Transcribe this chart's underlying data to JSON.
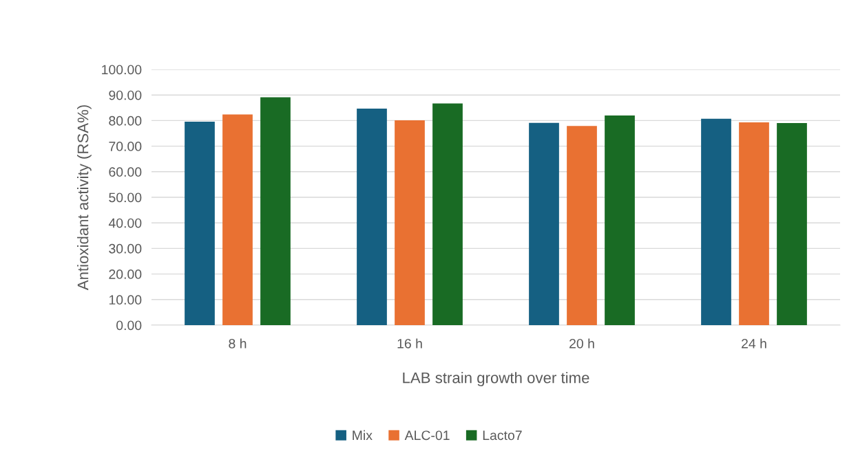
{
  "chart_data": {
    "type": "bar",
    "xlabel": "LAB strain growth over time",
    "ylabel": "Antioxidant activity (RSA%)",
    "categories": [
      "8 h",
      "16 h",
      "20 h",
      "24 h"
    ],
    "series": [
      {
        "name": "Mix",
        "color": "#156082",
        "values": [
          79.6,
          84.7,
          79.1,
          80.7
        ]
      },
      {
        "name": "ALC-01",
        "color": "#e97132",
        "values": [
          82.4,
          80.1,
          77.9,
          79.3
        ]
      },
      {
        "name": "Lacto7",
        "color": "#196b24",
        "values": [
          89.1,
          86.7,
          82.0,
          79.0
        ]
      }
    ],
    "ylim": [
      0,
      100
    ],
    "yticks": [
      {
        "value": 0,
        "label": "0.00"
      },
      {
        "value": 10,
        "label": "10.00"
      },
      {
        "value": 20,
        "label": "20.00"
      },
      {
        "value": 30,
        "label": "30.00"
      },
      {
        "value": 40,
        "label": "40.00"
      },
      {
        "value": 50,
        "label": "50.00"
      },
      {
        "value": 60,
        "label": "60.00"
      },
      {
        "value": 70,
        "label": "70.00"
      },
      {
        "value": 80,
        "label": "80.00"
      },
      {
        "value": 90,
        "label": "90.00"
      },
      {
        "value": 100,
        "label": "100.00"
      }
    ],
    "grid": "y",
    "legend": "bottom"
  }
}
